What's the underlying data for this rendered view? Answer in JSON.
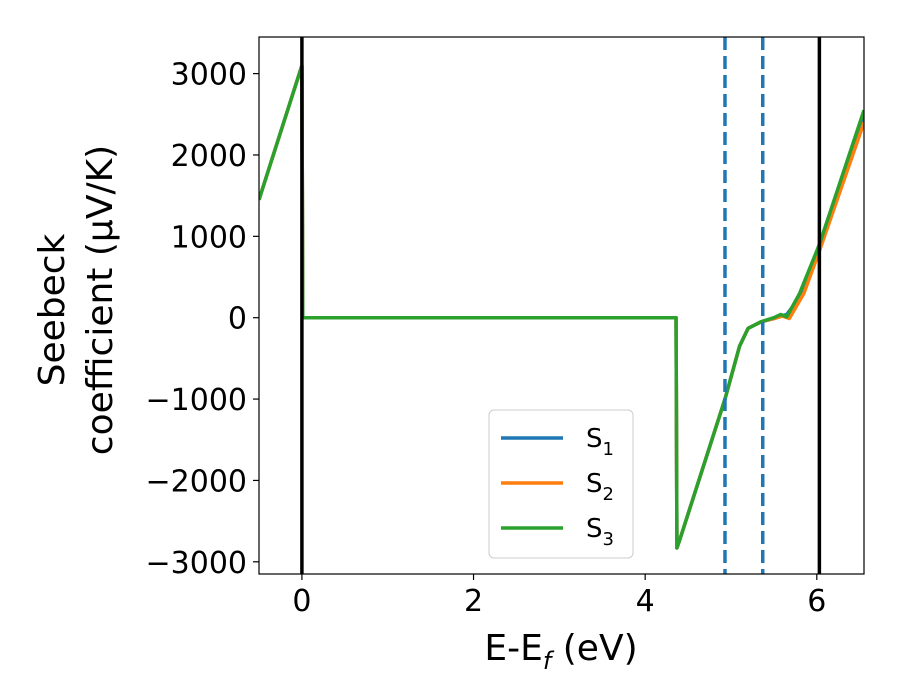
{
  "chart_data": {
    "type": "line",
    "xlabel_main": "E-E",
    "xlabel_sub": "f",
    "xlabel_unit": " (eV)",
    "ylabel_line1": "Seebeck",
    "ylabel_line2": "coefficient  (μV/K)",
    "xlim": [
      -0.5,
      6.55
    ],
    "ylim": [
      -3150,
      3450
    ],
    "xticks": [
      0,
      2,
      4,
      6
    ],
    "xtick_labels": [
      "0",
      "2",
      "4",
      "6"
    ],
    "yticks": [
      3000,
      2000,
      1000,
      0,
      -1000,
      -2000,
      -3000
    ],
    "ytick_labels": [
      "3000",
      "2000",
      "1000",
      "0",
      "−1000",
      "−2000",
      "−3000"
    ],
    "grid": false,
    "legend_position": "lower-center",
    "vertical_lines": [
      {
        "x": 0.0,
        "style": "solid",
        "color": "#000000"
      },
      {
        "x": 6.03,
        "style": "solid",
        "color": "#000000"
      },
      {
        "x": 4.93,
        "style": "dashed",
        "color": "#1f77b4"
      },
      {
        "x": 5.37,
        "style": "dashed",
        "color": "#1f77b4"
      }
    ],
    "series": [
      {
        "name": "S",
        "sub": "1",
        "color": "#1f77b4",
        "x": [
          -0.5,
          0.0,
          0.01,
          4.36,
          4.37,
          4.4,
          4.93,
          5.1,
          5.2,
          5.35,
          5.5,
          5.65,
          5.8,
          6.03,
          6.55
        ],
        "y": [
          1450,
          3100,
          0,
          0,
          -2830,
          -2740,
          -1000,
          -350,
          -130,
          -50,
          -10,
          40,
          250,
          900,
          2500
        ]
      },
      {
        "name": "S",
        "sub": "2",
        "color": "#ff7f0e",
        "x": [
          -0.5,
          0.0,
          0.01,
          4.36,
          4.37,
          4.4,
          4.93,
          5.1,
          5.2,
          5.35,
          5.5,
          5.6,
          5.68,
          5.85,
          6.03,
          6.55
        ],
        "y": [
          1450,
          3100,
          0,
          0,
          -2830,
          -2740,
          -1000,
          -350,
          -130,
          -50,
          -10,
          20,
          -10,
          300,
          820,
          2400
        ]
      },
      {
        "name": "S",
        "sub": "3",
        "color": "#2ca02c",
        "x": [
          -0.5,
          0.0,
          0.01,
          4.36,
          4.37,
          4.4,
          4.93,
          5.1,
          5.2,
          5.35,
          5.5,
          5.58,
          5.65,
          5.8,
          6.03,
          6.55
        ],
        "y": [
          1450,
          3100,
          0,
          0,
          -2830,
          -2740,
          -1000,
          -350,
          -130,
          -50,
          0,
          40,
          10,
          300,
          900,
          2550
        ]
      }
    ]
  }
}
